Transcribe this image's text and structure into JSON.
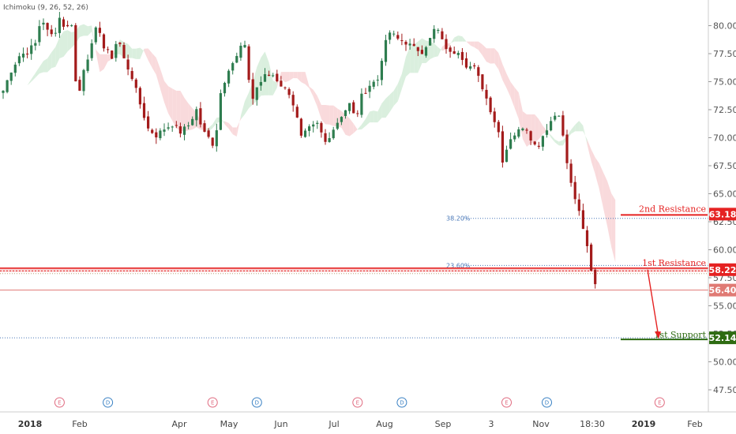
{
  "indicator_label": "Ichimoku (9, 26, 52, 26)",
  "chart_data": {
    "type": "candlestick",
    "title": "",
    "y_range": [
      46,
      82.5
    ],
    "y_ticks": [
      "47.50",
      "50.00",
      "52.50",
      "55.00",
      "57.50",
      "60.00",
      "62.50",
      "65.00",
      "67.50",
      "70.00",
      "72.50",
      "75.00",
      "77.50",
      "80.00"
    ],
    "x_labels": [
      {
        "label": "2018",
        "bold": true
      },
      {
        "label": "Feb",
        "bold": false
      },
      {
        "label": "Apr",
        "bold": false
      },
      {
        "label": "May",
        "bold": false
      },
      {
        "label": "Jun",
        "bold": false
      },
      {
        "label": "Jul",
        "bold": false
      },
      {
        "label": "Aug",
        "bold": false
      },
      {
        "label": "Sep",
        "bold": false
      },
      {
        "label": "3",
        "bold": false
      },
      {
        "label": "Nov",
        "bold": false
      },
      {
        "label": "18:30",
        "bold": false
      },
      {
        "label": "2019",
        "bold": true
      },
      {
        "label": "Feb",
        "bold": false
      }
    ],
    "price_path": [
      [
        0,
        74.2
      ],
      [
        2,
        76.0
      ],
      [
        4,
        77.3
      ],
      [
        6,
        77.7
      ],
      [
        8,
        78.4
      ],
      [
        9.5,
        80.8
      ],
      [
        11,
        79.5
      ],
      [
        12.5,
        79.0
      ],
      [
        14,
        80.7
      ],
      [
        15.5,
        79.7
      ],
      [
        17,
        80.2
      ],
      [
        18,
        75.0
      ],
      [
        19,
        74.2
      ],
      [
        20,
        76.2
      ],
      [
        22,
        78.2
      ],
      [
        23.5,
        80.3
      ],
      [
        25,
        78.0
      ],
      [
        27,
        77.2
      ],
      [
        28.5,
        79.0
      ],
      [
        30,
        77.0
      ],
      [
        32,
        75.4
      ],
      [
        34,
        73.0
      ],
      [
        36,
        70.8
      ],
      [
        38,
        70.2
      ],
      [
        40,
        70.8
      ],
      [
        42,
        71.2
      ],
      [
        44,
        70.5
      ],
      [
        46,
        71.1
      ],
      [
        48,
        72.5
      ],
      [
        49.5,
        70.6
      ],
      [
        51,
        70.0
      ],
      [
        52.5,
        69.2
      ],
      [
        54,
        74.0
      ],
      [
        56,
        76.2
      ],
      [
        58,
        77.2
      ],
      [
        59.5,
        78.6
      ],
      [
        60.5,
        77.5
      ],
      [
        61.5,
        73.0
      ],
      [
        63,
        74.5
      ],
      [
        65,
        75.5
      ],
      [
        67,
        75.6
      ],
      [
        69,
        74.7
      ],
      [
        71,
        74.0
      ],
      [
        72.5,
        72.5
      ],
      [
        74,
        70.0
      ],
      [
        76,
        70.8
      ],
      [
        78,
        71.2
      ],
      [
        80,
        69.6
      ],
      [
        82,
        70.8
      ],
      [
        84,
        72.0
      ],
      [
        86,
        73.0
      ],
      [
        87.5,
        71.6
      ],
      [
        89,
        73.7
      ],
      [
        91,
        74.7
      ],
      [
        93,
        75.2
      ],
      [
        94.5,
        78.0
      ],
      [
        96,
        79.4
      ],
      [
        98,
        78.8
      ],
      [
        100,
        78.5
      ],
      [
        102,
        78.0
      ],
      [
        104,
        77.7
      ],
      [
        106,
        78.8
      ],
      [
        107.5,
        80.0
      ],
      [
        109,
        78.6
      ],
      [
        111,
        77.5
      ],
      [
        113,
        77.8
      ],
      [
        115,
        76.5
      ],
      [
        117,
        76.2
      ],
      [
        119,
        74.5
      ],
      [
        121,
        72.5
      ],
      [
        123,
        70.5
      ],
      [
        124,
        68.0
      ],
      [
        125,
        69.0
      ],
      [
        126,
        70.0
      ],
      [
        128,
        70.6
      ],
      [
        129.5,
        71.2
      ],
      [
        131,
        70.0
      ],
      [
        132.5,
        69.0
      ],
      [
        134,
        70.2
      ],
      [
        136,
        71.5
      ],
      [
        137,
        72.0
      ],
      [
        138,
        72.2
      ],
      [
        139.5,
        69.0
      ],
      [
        140.5,
        66.5
      ],
      [
        141.5,
        65.2
      ],
      [
        142.5,
        64.0
      ],
      [
        143.5,
        62.5
      ],
      [
        144.5,
        61.0
      ],
      [
        145.5,
        59.5
      ],
      [
        146.5,
        57.0
      ]
    ],
    "resistance_levels": [
      {
        "name": "2nd Resistance",
        "price": "63.18"
      },
      {
        "name": "1st Resistance",
        "price": "58.22"
      }
    ],
    "support_levels": [
      {
        "name": "1st Support",
        "price": "52.14"
      }
    ],
    "fib_levels": [
      {
        "label": "38.20%",
        "price": 62.8
      },
      {
        "label": "23.60%",
        "price": 58.6
      }
    ],
    "current_price": "56.40",
    "events": [
      {
        "label": "E",
        "kind": "earnings",
        "bar": 14
      },
      {
        "label": "D",
        "kind": "dividend",
        "bar": 26
      },
      {
        "label": "E",
        "kind": "earnings",
        "bar": 52
      },
      {
        "label": "D",
        "kind": "dividend",
        "bar": 63
      },
      {
        "label": "E",
        "kind": "earnings",
        "bar": 88
      },
      {
        "label": "D",
        "kind": "dividend",
        "bar": 99
      },
      {
        "label": "E",
        "kind": "earnings",
        "bar": 125
      },
      {
        "label": "D",
        "kind": "dividend",
        "bar": 135
      },
      {
        "label": "E",
        "kind": "earnings",
        "bar": 163
      }
    ],
    "colors": {
      "bull": "#2e7d4f",
      "bear": "#a31b1b",
      "resistance": "#e52222",
      "support": "#2e6b12",
      "fib": "#4a78b8",
      "cloud_green": "#d3ecd8",
      "cloud_red": "#f8d3d6",
      "current_price_badge": "#e07a74",
      "earnings": "#e06b80",
      "dividend": "#3b82c4"
    }
  }
}
